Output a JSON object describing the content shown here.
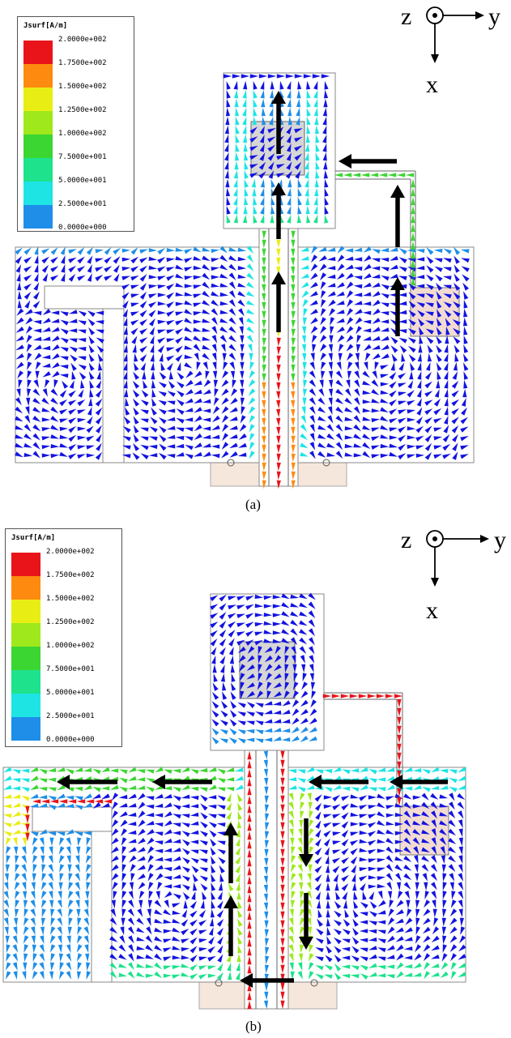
{
  "legend": {
    "title": "Jsurf[A/m]",
    "entries": [
      {
        "label": "2.0000e+002",
        "color": "#e8141a"
      },
      {
        "label": "1.7500e+002",
        "color": "#ff8a10"
      },
      {
        "label": "1.5000e+002",
        "color": "#e8ee14"
      },
      {
        "label": "1.2500e+002",
        "color": "#9ee81c"
      },
      {
        "label": "1.0000e+002",
        "color": "#3cd632"
      },
      {
        "label": "7.5000e+001",
        "color": "#1ee28c"
      },
      {
        "label": "5.0000e+001",
        "color": "#1ee4e4"
      },
      {
        "label": "2.5000e+001",
        "color": "#1e8ee8"
      },
      {
        "label": "0.0000e+000",
        "color": "#1414e0"
      }
    ]
  },
  "axes": {
    "z": "z",
    "x": "x",
    "y": "y"
  },
  "captions": {
    "a": "(a)",
    "b": "(b)"
  }
}
